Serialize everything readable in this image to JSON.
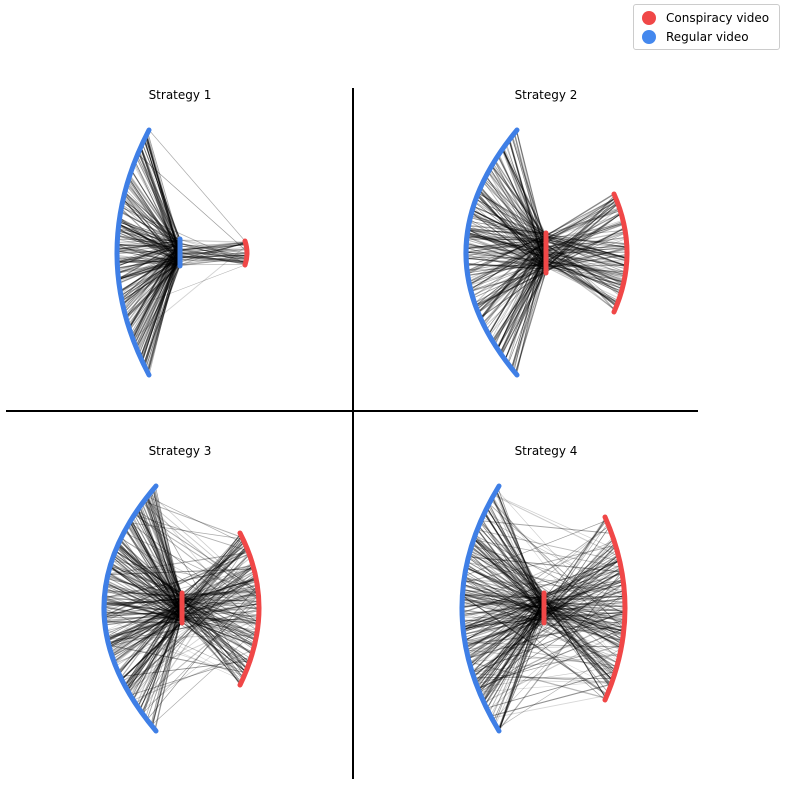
{
  "legend": {
    "items": [
      {
        "label": "Conspiracy video",
        "color": "#f04747"
      },
      {
        "label": "Regular video",
        "color": "#4488ee"
      }
    ]
  },
  "colors": {
    "conspiracy": "#f04747",
    "regular": "#3f7fe6",
    "edge": "#000000",
    "divider": "#000000"
  },
  "panels": [
    {
      "title": "Strategy 1",
      "center_group": "regular"
    },
    {
      "title": "Strategy 2",
      "center_group": "conspiracy"
    },
    {
      "title": "Strategy 3",
      "center_group": "conspiracy"
    },
    {
      "title": "Strategy 4",
      "center_group": "conspiracy"
    }
  ]
}
